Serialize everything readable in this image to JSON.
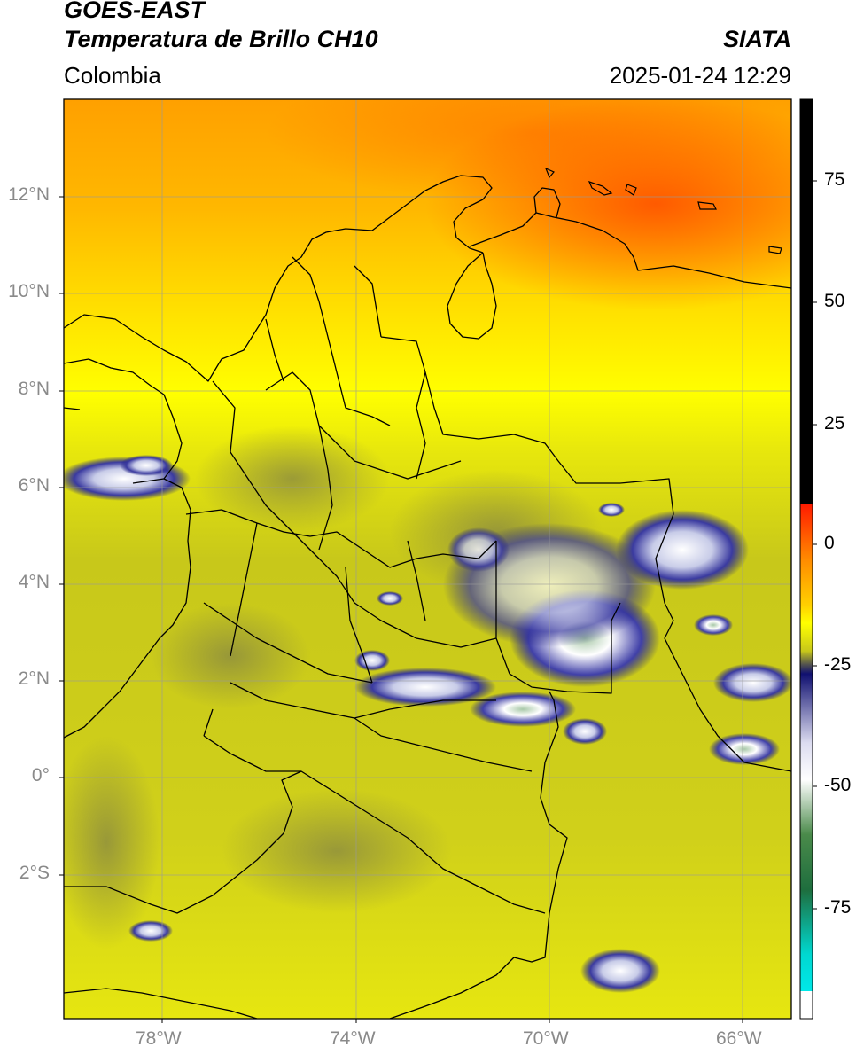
{
  "header": {
    "satellite": "GOES-EAST",
    "product": "Temperatura de Brillo CH10",
    "region": "Colombia",
    "agency": "SIATA",
    "datetime": "2025-01-24 12:29"
  },
  "map": {
    "lat_labels": [
      "12°N",
      "10°N",
      "8°N",
      "6°N",
      "4°N",
      "2°N",
      "0°",
      "2°S"
    ],
    "lon_labels": [
      "78°W",
      "74°W",
      "70°W",
      "66°W"
    ],
    "grid": true
  },
  "colorbar": {
    "ticks": [
      "75",
      "50",
      "25",
      "0",
      "-25",
      "-50",
      "-75"
    ],
    "colors": {
      "black": "#000000",
      "red": "#ff1a00",
      "orange": "#ff9900",
      "yellow": "#ffff00",
      "olive": "#b8b81a",
      "navy": "#101070",
      "white": "#ffffff",
      "green": "#2e7d32",
      "cyan": "#00e0e0"
    }
  }
}
